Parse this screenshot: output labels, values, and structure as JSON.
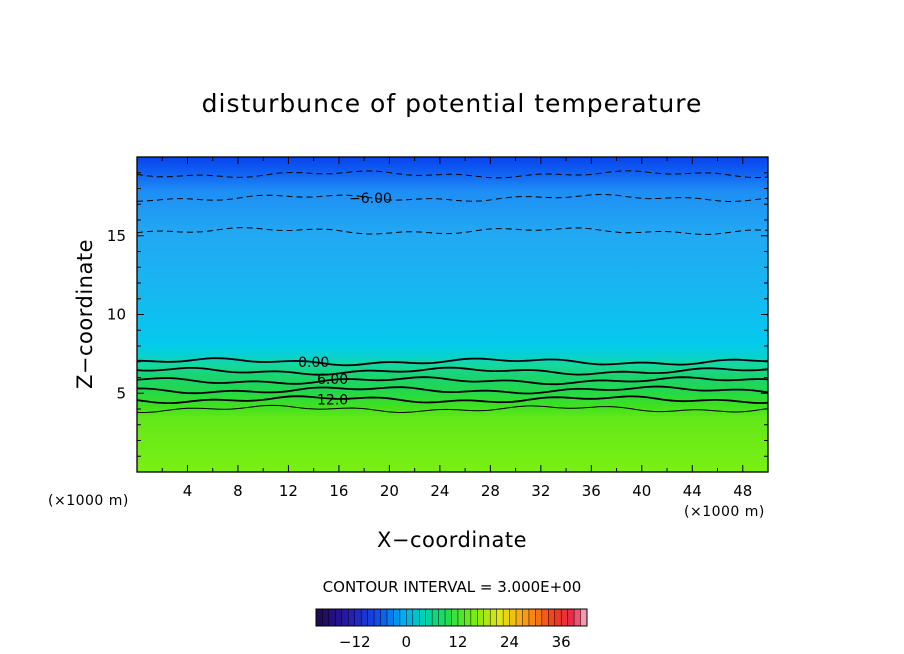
{
  "chart_data": {
    "type": "contour",
    "title": "disturbunce of potential temperature",
    "xlabel": "X−coordinate",
    "ylabel": "Z−coordinate",
    "x_unit_left": "(×1000 m)",
    "x_unit_right": "(×1000 m)",
    "xlim": [
      0,
      50
    ],
    "ylim": [
      0,
      20
    ],
    "x_ticks": [
      4,
      8,
      12,
      16,
      20,
      24,
      28,
      32,
      36,
      40,
      44,
      48
    ],
    "y_ticks": [
      5,
      10,
      15
    ],
    "x_tick_labels": [
      "4",
      "8",
      "12",
      "16",
      "20",
      "24",
      "28",
      "32",
      "36",
      "40",
      "44",
      "48"
    ],
    "y_tick_labels": [
      "5",
      "10",
      "15"
    ],
    "contour_interval_text": "CONTOUR INTERVAL = 3.000E+00",
    "contour_interval": 3.0,
    "contour_labels": [
      {
        "text": "−6.00",
        "x": 18.5,
        "z": 17.4
      },
      {
        "text": "0.00",
        "x": 14.0,
        "z": 7.0
      },
      {
        "text": "6.00",
        "x": 15.5,
        "z": 5.9
      },
      {
        "text": "12.0",
        "x": 15.5,
        "z": 4.6
      }
    ],
    "contour_levels_z": [
      {
        "value": -9.0,
        "z": 18.9,
        "style": "dashed"
      },
      {
        "value": -6.0,
        "z": 17.4,
        "style": "dashed"
      },
      {
        "value": -3.0,
        "z": 15.3,
        "style": "dashed"
      },
      {
        "value": 0.0,
        "z": 7.0,
        "style": "solid-bold"
      },
      {
        "value": 3.0,
        "z": 6.4,
        "style": "solid-bold"
      },
      {
        "value": 6.0,
        "z": 5.8,
        "style": "solid-bold"
      },
      {
        "value": 9.0,
        "z": 5.2,
        "style": "solid-bold"
      },
      {
        "value": 12.0,
        "z": 4.6,
        "style": "solid-bold"
      },
      {
        "value": 15.0,
        "z": 4.0,
        "style": "solid-thin"
      }
    ],
    "colorbar": {
      "range": [
        -21,
        42
      ],
      "tick_values": [
        -12,
        0,
        12,
        24,
        36
      ],
      "tick_labels": [
        "−12",
        "0",
        "12",
        "24",
        "36"
      ]
    },
    "colors": {
      "top_band": "#0a46f0",
      "upper_band": "#1e96f5",
      "mid_band": "#00c8f0",
      "surface_band": "#7aec14",
      "zero_contour": "#000000"
    }
  }
}
